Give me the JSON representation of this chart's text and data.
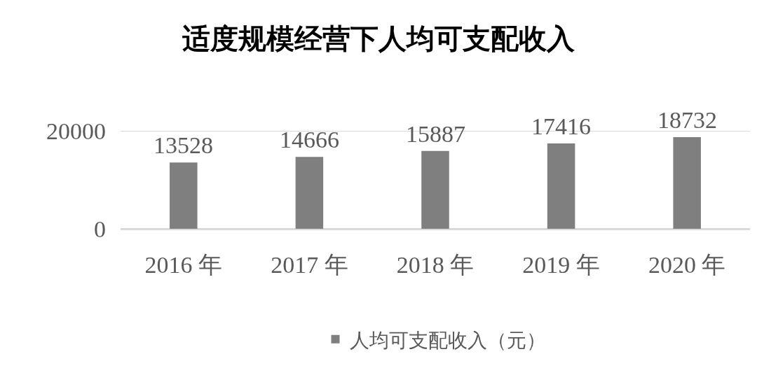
{
  "chart_data": {
    "type": "bar",
    "title": "适度规模经营下人均可支配收入",
    "categories": [
      "2016 年",
      "2017 年",
      "2018 年",
      "2019 年",
      "2020 年"
    ],
    "series": [
      {
        "name": "人均可支配收入（元）",
        "color": "#7f7f7f",
        "values": [
          13528,
          14666,
          15887,
          17416,
          18732
        ]
      }
    ],
    "ylim": [
      0,
      20000
    ],
    "yticks": [
      0,
      20000
    ],
    "grid": "y",
    "legend": "bottom",
    "data_labels": true
  }
}
